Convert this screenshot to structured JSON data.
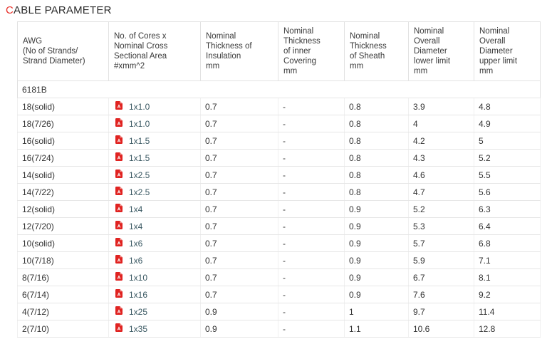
{
  "page": {
    "title_accent": "C",
    "title_rest": "ABLE PARAMETER"
  },
  "colors": {
    "accent_red": "#e8312a",
    "link_text": "#3c5a64",
    "pdf_icon_red": "#e02321",
    "body_text": "#333333",
    "border_gray": "#e2e2e2"
  },
  "table": {
    "headers": [
      "AWG\n(No of Strands/\nStrand Diameter)",
      "No. of Cores x\nNominal Cross\nSectional Area\n#xmm^2",
      "Nominal\nThickness of\nInsulation\nmm",
      "Nominal\nThickness\nof inner\nCovering\nmm",
      "Nominal\nThickness\nof Sheath\nmm",
      "Nominal\nOverall\nDiameter\nlower limit\nmm",
      "Nominal\nOverall\nDiameter\nupper limit\nmm"
    ],
    "section_label": "6181B",
    "pdf_icon_name": "pdf-file-icon",
    "rows": [
      {
        "awg": "18(solid)",
        "cores": "1x1.0",
        "insulation": "0.7",
        "inner_covering": "-",
        "sheath": "0.8",
        "od_lower": "3.9",
        "od_upper": "4.8"
      },
      {
        "awg": "18(7/26)",
        "cores": "1x1.0",
        "insulation": "0.7",
        "inner_covering": "-",
        "sheath": "0.8",
        "od_lower": "4",
        "od_upper": "4.9"
      },
      {
        "awg": "16(solid)",
        "cores": "1x1.5",
        "insulation": "0.7",
        "inner_covering": "-",
        "sheath": "0.8",
        "od_lower": "4.2",
        "od_upper": "5"
      },
      {
        "awg": "16(7/24)",
        "cores": "1x1.5",
        "insulation": "0.7",
        "inner_covering": "-",
        "sheath": "0.8",
        "od_lower": "4.3",
        "od_upper": "5.2"
      },
      {
        "awg": "14(solid)",
        "cores": "1x2.5",
        "insulation": "0.7",
        "inner_covering": "-",
        "sheath": "0.8",
        "od_lower": "4.6",
        "od_upper": "5.5"
      },
      {
        "awg": "14(7/22)",
        "cores": "1x2.5",
        "insulation": "0.7",
        "inner_covering": "-",
        "sheath": "0.8",
        "od_lower": "4.7",
        "od_upper": "5.6"
      },
      {
        "awg": "12(solid)",
        "cores": "1x4",
        "insulation": "0.7",
        "inner_covering": "-",
        "sheath": "0.9",
        "od_lower": "5.2",
        "od_upper": "6.3"
      },
      {
        "awg": "12(7/20)",
        "cores": "1x4",
        "insulation": "0.7",
        "inner_covering": "-",
        "sheath": "0.9",
        "od_lower": "5.3",
        "od_upper": "6.4"
      },
      {
        "awg": "10(solid)",
        "cores": "1x6",
        "insulation": "0.7",
        "inner_covering": "-",
        "sheath": "0.9",
        "od_lower": "5.7",
        "od_upper": "6.8"
      },
      {
        "awg": "10(7/18)",
        "cores": "1x6",
        "insulation": "0.7",
        "inner_covering": "-",
        "sheath": "0.9",
        "od_lower": "5.9",
        "od_upper": "7.1"
      },
      {
        "awg": "8(7/16)",
        "cores": "1x10",
        "insulation": "0.7",
        "inner_covering": "-",
        "sheath": "0.9",
        "od_lower": "6.7",
        "od_upper": "8.1"
      },
      {
        "awg": "6(7/14)",
        "cores": "1x16",
        "insulation": "0.7",
        "inner_covering": "-",
        "sheath": "0.9",
        "od_lower": "7.6",
        "od_upper": "9.2"
      },
      {
        "awg": "4(7/12)",
        "cores": "1x25",
        "insulation": "0.9",
        "inner_covering": "-",
        "sheath": "1",
        "od_lower": "9.7",
        "od_upper": "11.4"
      },
      {
        "awg": "2(7/10)",
        "cores": "1x35",
        "insulation": "0.9",
        "inner_covering": "-",
        "sheath": "1.1",
        "od_lower": "10.6",
        "od_upper": "12.8"
      }
    ]
  }
}
